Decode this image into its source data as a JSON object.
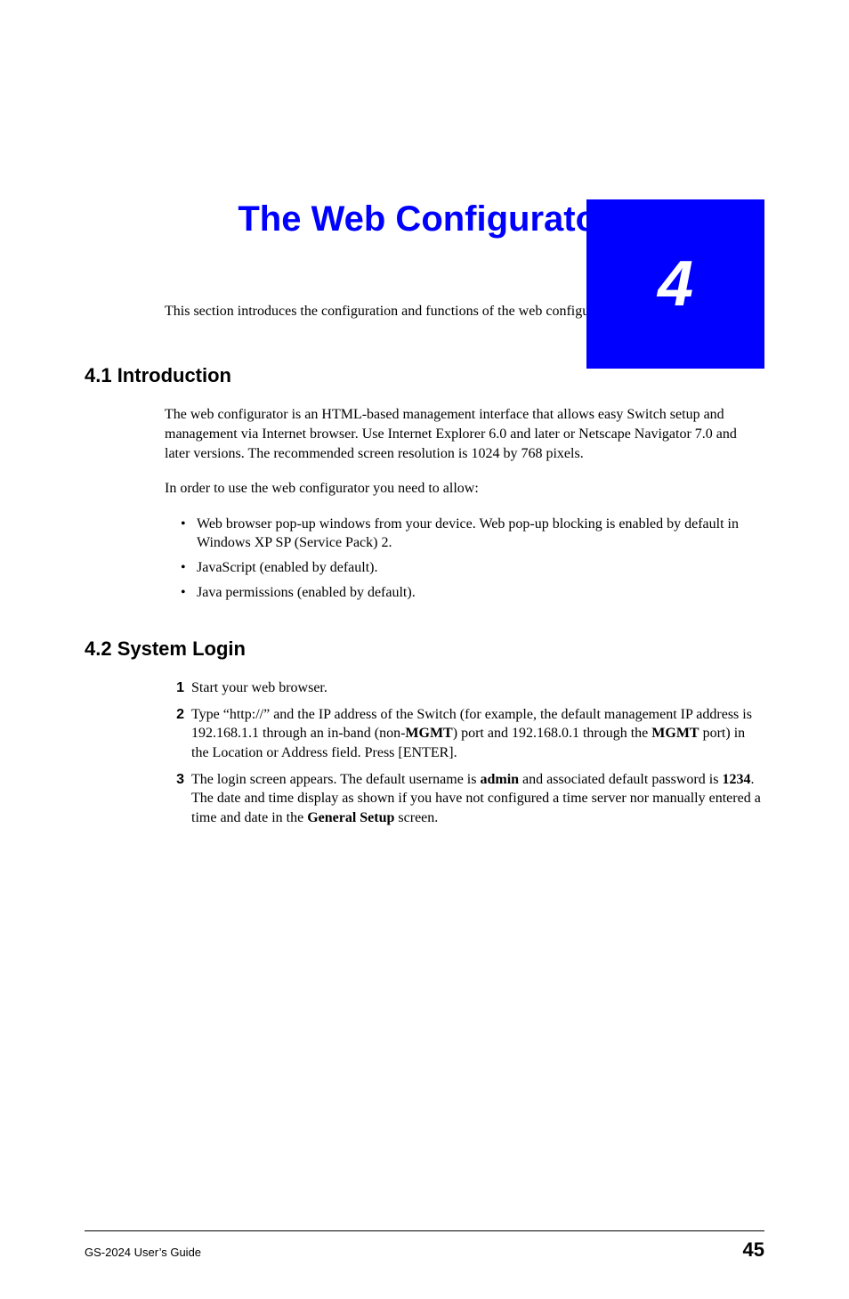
{
  "colors": {
    "accent": "#0000ff",
    "text": "#000000",
    "background": "#ffffff",
    "tab_text": "#ffffff"
  },
  "chapter": {
    "number": "4",
    "title": "The Web Configurator"
  },
  "intro": "This section introduces the configuration and functions of the web configurator.",
  "sections": [
    {
      "heading": "4.1  Introduction",
      "paras": [
        "The web configurator is an HTML-based management interface that allows easy Switch setup and management via Internet browser. Use Internet Explorer 6.0 and later or Netscape Navigator 7.0 and later versions. The recommended screen resolution is 1024 by 768 pixels.",
        "In order to use the web configurator you need to allow:"
      ],
      "bullets": [
        "Web browser pop-up windows from your device. Web pop-up blocking is enabled by default in Windows XP SP (Service Pack) 2.",
        "JavaScript (enabled by default).",
        "Java permissions (enabled by default)."
      ]
    },
    {
      "heading": "4.2  System Login",
      "steps": [
        {
          "n": "1",
          "text_html": "Start your web browser."
        },
        {
          "n": "2",
          "text_html": "Type “http://” and the IP address of the Switch (for example, the default management IP address is 192.168.1.1 through an in-band (non-<b>MGMT</b>) port and 192.168.0.1 through the <b>MGMT</b> port) in the Location or Address field. Press [ENTER]."
        },
        {
          "n": "3",
          "text_html": "The login screen appears. The default username is <b>admin</b> and associated default password is <b>1234</b>. The date and time display as shown if you have not configured a time server nor manually entered a time and date in the <b>General Setup</b> screen."
        }
      ]
    }
  ],
  "footer": {
    "left": "GS-2024 User’s Guide",
    "page": "45"
  }
}
